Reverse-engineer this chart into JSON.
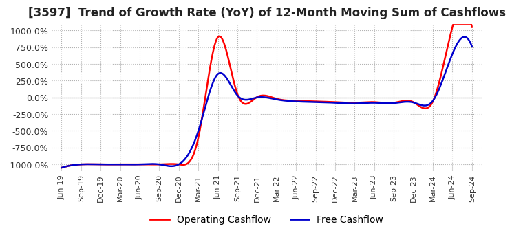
{
  "title": "[3597]  Trend of Growth Rate (YoY) of 12-Month Moving Sum of Cashflows",
  "title_fontsize": 12,
  "ylim": [
    -1100,
    1100
  ],
  "yticks": [
    -1000,
    -750,
    -500,
    -250,
    0,
    250,
    500,
    750,
    1000
  ],
  "ytick_labels": [
    "-1000.0%",
    "-750.0%",
    "-500.0%",
    "-250.0%",
    "0.0%",
    "250.0%",
    "500.0%",
    "750.0%",
    "1000.0%"
  ],
  "operating_color": "#FF0000",
  "free_color": "#0000CD",
  "background_color": "#FFFFFF",
  "plot_bg_color": "#FFFFFF",
  "grid_color": "#AAAAAA",
  "legend_labels": [
    "Operating Cashflow",
    "Free Cashflow"
  ],
  "x_labels": [
    "Jun-19",
    "Sep-19",
    "Dec-19",
    "Mar-20",
    "Jun-20",
    "Sep-20",
    "Dec-20",
    "Mar-21",
    "Jun-21",
    "Sep-21",
    "Dec-21",
    "Mar-22",
    "Jun-22",
    "Sep-22",
    "Dec-22",
    "Mar-23",
    "Jun-23",
    "Sep-23",
    "Dec-23",
    "Mar-24",
    "Jun-24",
    "Sep-24"
  ],
  "operating_cashflow": [
    -1050,
    -1000,
    -1000,
    -1000,
    -1000,
    -1000,
    -1000,
    -600,
    900,
    50,
    5,
    -20,
    -50,
    -60,
    -70,
    -80,
    -70,
    -80,
    -70,
    -60,
    1050,
    1050
  ],
  "free_cashflow": [
    -1050,
    -1000,
    -1000,
    -1000,
    -1000,
    -1000,
    -1000,
    -500,
    350,
    30,
    0,
    -30,
    -60,
    -70,
    -80,
    -90,
    -80,
    -85,
    -75,
    -50,
    650,
    760
  ]
}
